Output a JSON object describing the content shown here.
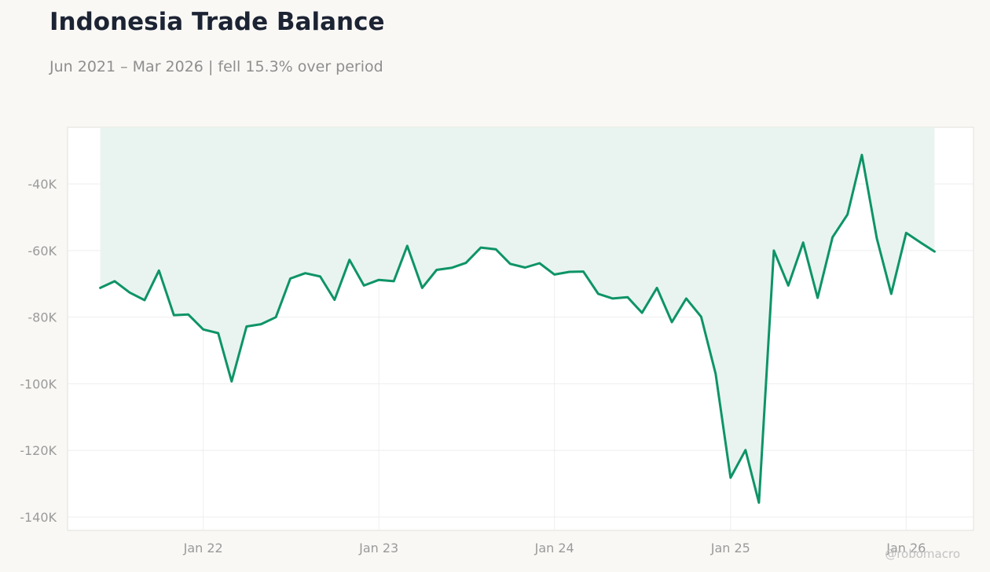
{
  "title": "Indonesia Trade Balance",
  "subtitle": "Jun 2021 – Mar 2026 | fell 15.3% over period",
  "watermark": "@robomacro",
  "colors": {
    "line": "#0e9466",
    "fill": "#e9f4f0",
    "background": "#f9f8f5",
    "plot_background": "#ffffff"
  },
  "chart_data": {
    "type": "area",
    "title": "Indonesia Trade Balance",
    "subtitle": "Jun 2021 – Mar 2026 | fell 15.3% over period",
    "xlabel": "",
    "ylabel": "",
    "ylim": [
      -144000,
      -23000
    ],
    "yticks": [
      -140000,
      -120000,
      -100000,
      -80000,
      -60000,
      -40000
    ],
    "ytick_labels": [
      "-140K",
      "-120K",
      "-100K",
      "-80K",
      "-60K",
      "-40K"
    ],
    "xlim": [
      "2021-03-25",
      "2026-05-21"
    ],
    "xticks": [
      "2022-01-01",
      "2023-01-01",
      "2024-01-01",
      "2025-01-01",
      "2026-01-01"
    ],
    "xtick_labels": [
      "Jan 22",
      "Jan 23",
      "Jan 24",
      "Jan 25",
      "Jan 26"
    ],
    "grid": true,
    "legend": "none",
    "fill_to": "top",
    "x": [
      "2021-06-01",
      "2021-07-01",
      "2021-08-01",
      "2021-09-01",
      "2021-10-01",
      "2021-11-01",
      "2021-12-01",
      "2022-01-01",
      "2022-02-01",
      "2022-03-01",
      "2022-04-01",
      "2022-05-01",
      "2022-06-01",
      "2022-07-01",
      "2022-08-01",
      "2022-09-01",
      "2022-10-01",
      "2022-11-01",
      "2022-12-01",
      "2023-01-01",
      "2023-02-01",
      "2023-03-01",
      "2023-04-01",
      "2023-05-01",
      "2023-06-01",
      "2023-07-01",
      "2023-08-01",
      "2023-09-01",
      "2023-10-01",
      "2023-11-01",
      "2023-12-01",
      "2024-01-01",
      "2024-02-01",
      "2024-03-01",
      "2024-04-01",
      "2024-05-01",
      "2024-06-01",
      "2024-07-01",
      "2024-08-01",
      "2024-09-01",
      "2024-10-01",
      "2024-11-01",
      "2024-12-01",
      "2025-01-01",
      "2025-02-01",
      "2025-03-01",
      "2025-04-01",
      "2025-05-01",
      "2025-06-01",
      "2025-07-01",
      "2025-08-01",
      "2025-09-01",
      "2025-10-01",
      "2025-11-01",
      "2025-12-01",
      "2026-01-01",
      "2026-02-01",
      "2026-03-01"
    ],
    "series": [
      {
        "values": [
          -71200,
          -69200,
          -72600,
          -74900,
          -66000,
          -79400,
          -79200,
          -83700,
          -84800,
          -99300,
          -82800,
          -82100,
          -80000,
          -68400,
          -66800,
          -67800,
          -74800,
          -62800,
          -70500,
          -68800,
          -69200,
          -58600,
          -71200,
          -65800,
          -65200,
          -63700,
          -59100,
          -59600,
          -64000,
          -65100,
          -63800,
          -67200,
          -66400,
          -66300,
          -73000,
          -74400,
          -74000,
          -78700,
          -71200,
          -81500,
          -74400,
          -79900,
          -97000,
          -128200,
          -119900,
          -135700,
          -60000,
          -70500,
          -57600,
          -74200,
          -56000,
          -49200,
          -31300,
          -56300,
          -73000,
          -54700,
          -57700,
          -60300
        ]
      }
    ]
  }
}
